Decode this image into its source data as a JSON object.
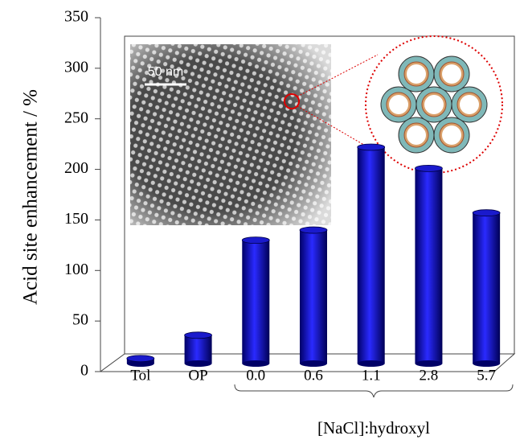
{
  "chart_data": {
    "type": "bar",
    "y_label": "Acid site enhancement  / %",
    "categories": [
      "Tol",
      "OP",
      "0.0",
      "0.6",
      "1.1",
      "2.8",
      "5.7"
    ],
    "values": [
      5,
      28,
      122,
      132,
      214,
      193,
      149
    ],
    "color": "#1a1acc",
    "ylim": [
      0,
      350
    ],
    "yticks": [
      0,
      50,
      100,
      150,
      200,
      250,
      300,
      350
    ],
    "group_label": "[NaCl]:hydroxyl",
    "inset_scale_label": "50 nm"
  }
}
